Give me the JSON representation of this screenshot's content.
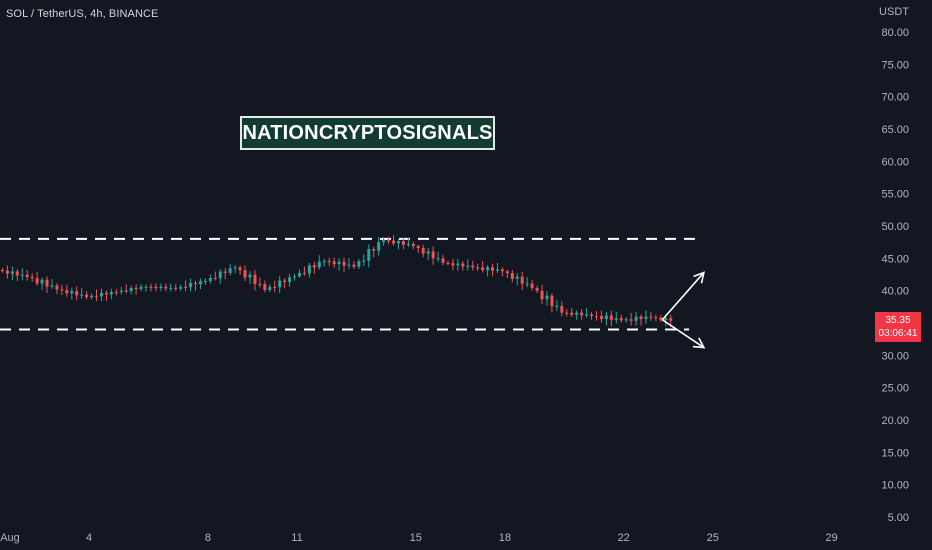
{
  "header": {
    "symbol_title": "SOL / TetherUS, 4h, BINANCE"
  },
  "watermark": "NATIONCRYPTOSIGNALS",
  "current_price": {
    "price": "35.35",
    "countdown": "03:06:41",
    "value": 35.35
  },
  "colors": {
    "background": "#131722",
    "up": "#26a69a",
    "down": "#ef5350",
    "price_tag": "#f23645",
    "annotation": "#ffffff"
  },
  "chart_data": {
    "type": "candlestick",
    "title": "",
    "currency_label": "USDT",
    "y_ticks": [
      "80.00",
      "75.00",
      "70.00",
      "65.00",
      "60.00",
      "55.00",
      "50.00",
      "45.00",
      "40.00",
      "35.00",
      "30.00",
      "25.00",
      "20.00",
      "15.00",
      "10.00",
      "5.00"
    ],
    "x_ticks": [
      "Aug",
      "4",
      "8",
      "11",
      "15",
      "18",
      "22",
      "25",
      "29"
    ],
    "ylim": [
      4,
      82
    ],
    "xlim": [
      1,
      30
    ],
    "ohlc_daily": [
      {
        "day": 1,
        "o": 43.2,
        "h": 43.9,
        "l": 41.5,
        "c": 42.1
      },
      {
        "day": 2,
        "o": 42.1,
        "h": 43.4,
        "l": 39.4,
        "c": 40.2
      },
      {
        "day": 3,
        "o": 40.2,
        "h": 40.9,
        "l": 38.5,
        "c": 39.0
      },
      {
        "day": 4,
        "o": 39.0,
        "h": 40.3,
        "l": 38.4,
        "c": 39.8
      },
      {
        "day": 5,
        "o": 39.8,
        "h": 41.0,
        "l": 39.4,
        "c": 40.6
      },
      {
        "day": 6,
        "o": 40.6,
        "h": 41.1,
        "l": 39.9,
        "c": 40.3
      },
      {
        "day": 7,
        "o": 40.3,
        "h": 41.9,
        "l": 39.9,
        "c": 41.5
      },
      {
        "day": 8,
        "o": 41.5,
        "h": 44.1,
        "l": 41.1,
        "c": 43.6
      },
      {
        "day": 9,
        "o": 43.6,
        "h": 43.9,
        "l": 39.4,
        "c": 40.1
      },
      {
        "day": 10,
        "o": 40.1,
        "h": 42.6,
        "l": 39.6,
        "c": 42.2
      },
      {
        "day": 11,
        "o": 42.2,
        "h": 45.9,
        "l": 42.0,
        "c": 44.6
      },
      {
        "day": 12,
        "o": 44.6,
        "h": 45.1,
        "l": 42.8,
        "c": 43.7
      },
      {
        "day": 13,
        "o": 43.7,
        "h": 48.3,
        "l": 43.3,
        "c": 47.8
      },
      {
        "day": 14,
        "o": 47.8,
        "h": 48.6,
        "l": 46.4,
        "c": 46.9
      },
      {
        "day": 15,
        "o": 46.9,
        "h": 47.1,
        "l": 43.6,
        "c": 44.3
      },
      {
        "day": 16,
        "o": 44.3,
        "h": 44.9,
        "l": 43.1,
        "c": 43.6
      },
      {
        "day": 17,
        "o": 43.6,
        "h": 44.6,
        "l": 42.2,
        "c": 43.0
      },
      {
        "day": 18,
        "o": 43.0,
        "h": 43.2,
        "l": 39.7,
        "c": 40.4
      },
      {
        "day": 19,
        "o": 40.4,
        "h": 40.9,
        "l": 35.6,
        "c": 36.6
      },
      {
        "day": 20,
        "o": 36.6,
        "h": 37.3,
        "l": 35.5,
        "c": 36.1
      },
      {
        "day": 21,
        "o": 36.1,
        "h": 36.9,
        "l": 33.9,
        "c": 35.4
      },
      {
        "day": 22,
        "o": 35.4,
        "h": 37.0,
        "l": 34.6,
        "c": 35.9
      },
      {
        "day": 23,
        "o": 35.9,
        "h": 36.3,
        "l": 34.4,
        "c": 35.35
      }
    ],
    "annotations": {
      "resistance_line": {
        "value": 48.0,
        "x_start": 1,
        "x_end": 24.4
      },
      "support_line": {
        "value": 34.0,
        "x_start": 1,
        "x_end": 24.2
      },
      "arrow_up": {
        "from": [
          23.3,
          35.5
        ],
        "to": [
          24.7,
          42.8
        ]
      },
      "arrow_down": {
        "from": [
          23.3,
          35.5
        ],
        "to": [
          24.7,
          31.2
        ]
      }
    },
    "grid": false,
    "legend": "none"
  }
}
